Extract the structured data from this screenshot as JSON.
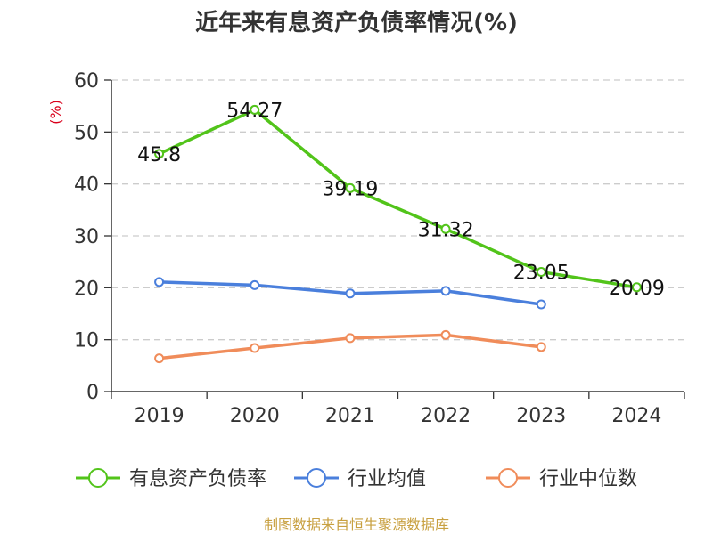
{
  "chart_data": {
    "type": "line",
    "title": "近年来有息资产负债率情况(%)",
    "ylabel": "(%)",
    "xlabel": "",
    "categories": [
      "2019",
      "2020",
      "2021",
      "2022",
      "2023",
      "2024"
    ],
    "ylim": [
      0,
      60
    ],
    "yticks": [
      0,
      10,
      20,
      30,
      40,
      50,
      60
    ],
    "grid": true,
    "legend_position": "bottom",
    "series": [
      {
        "name": "有息资产负债率",
        "color": "#52c41a",
        "values": [
          45.8,
          54.27,
          39.19,
          31.32,
          23.05,
          20.09
        ],
        "labels": [
          "45.8",
          "54.27",
          "39.19",
          "31.32",
          "23.05",
          "20.09"
        ]
      },
      {
        "name": "行业均值",
        "color": "#4a7fdc",
        "values": [
          21.1,
          20.5,
          18.9,
          19.4,
          16.8,
          null
        ]
      },
      {
        "name": "行业中位数",
        "color": "#f08c5a",
        "values": [
          6.4,
          8.4,
          10.3,
          10.9,
          8.6,
          null
        ]
      }
    ],
    "source": "制图数据来自恒生聚源数据库",
    "colors": {
      "axis": "#333333",
      "grid": "#cccccc",
      "unit": "#d9001b",
      "source": "#c8a040"
    }
  }
}
